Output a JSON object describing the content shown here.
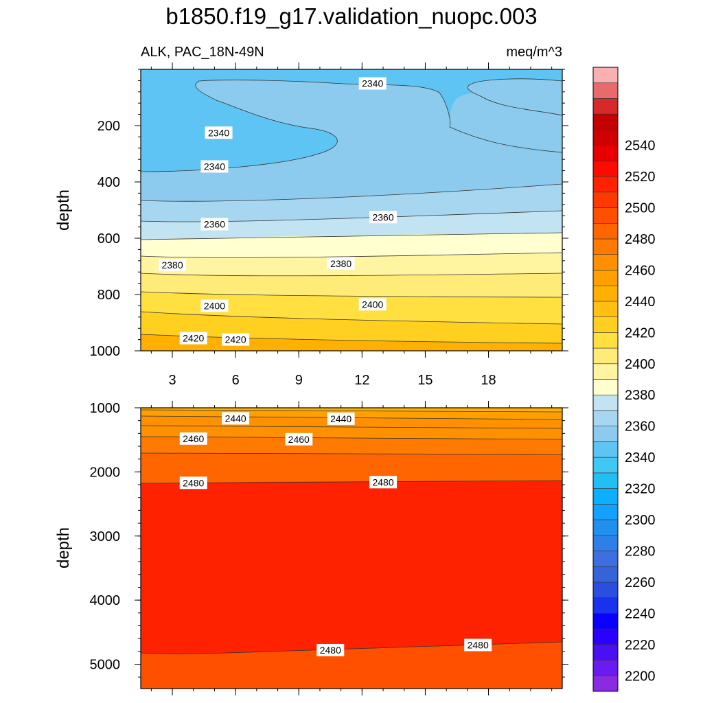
{
  "chart_data": {
    "type": "contour",
    "title": "b1850.f19_g17.validation_nuopc.003",
    "variable_label": "ALK, PAC_18N-49N",
    "units_label": "meq/m^3",
    "ylabel": "depth",
    "x_ticks": [
      "3",
      "6",
      "9",
      "12",
      "15",
      "18"
    ],
    "xlim": [
      1.5,
      21.5
    ],
    "panels": [
      {
        "name": "upper",
        "ylim": [
          0,
          1000
        ],
        "y_ticks": [
          "200",
          "400",
          "600",
          "800",
          "1000"
        ],
        "y_tick_values": [
          200,
          400,
          600,
          800,
          1000
        ],
        "contour_labels": [
          {
            "text": "2340",
            "x": 12.5,
            "depth": 50
          },
          {
            "text": "2340",
            "x": 5.2,
            "depth": 225
          },
          {
            "text": "2340",
            "x": 5.0,
            "depth": 345
          },
          {
            "text": "2360",
            "x": 5.0,
            "depth": 550
          },
          {
            "text": "2360",
            "x": 13.0,
            "depth": 525
          },
          {
            "text": "2380",
            "x": 3.0,
            "depth": 695
          },
          {
            "text": "2380",
            "x": 11.0,
            "depth": 690
          },
          {
            "text": "2400",
            "x": 5.0,
            "depth": 840
          },
          {
            "text": "2400",
            "x": 12.5,
            "depth": 835
          },
          {
            "text": "2420",
            "x": 4.0,
            "depth": 955
          },
          {
            "text": "2420",
            "x": 6.0,
            "depth": 960
          }
        ]
      },
      {
        "name": "lower",
        "ylim": [
          1000,
          5380
        ],
        "y_ticks": [
          "1000",
          "2000",
          "3000",
          "4000",
          "5000"
        ],
        "y_tick_values": [
          1000,
          2000,
          3000,
          4000,
          5000
        ],
        "contour_labels": [
          {
            "text": "2440",
            "x": 6.0,
            "depth": 1165
          },
          {
            "text": "2440",
            "x": 11.0,
            "depth": 1170
          },
          {
            "text": "2460",
            "x": 4.0,
            "depth": 1480
          },
          {
            "text": "2460",
            "x": 9.0,
            "depth": 1490
          },
          {
            "text": "2480",
            "x": 4.0,
            "depth": 2170
          },
          {
            "text": "2480",
            "x": 13.0,
            "depth": 2160
          },
          {
            "text": "2480",
            "x": 10.5,
            "depth": 4780
          },
          {
            "text": "2480",
            "x": 17.5,
            "depth": 4700
          }
        ]
      }
    ],
    "colorbar": {
      "levels": [
        2200,
        2220,
        2240,
        2260,
        2280,
        2300,
        2320,
        2340,
        2360,
        2380,
        2400,
        2420,
        2440,
        2460,
        2480,
        2500,
        2520,
        2540
      ],
      "labels": [
        "2200",
        "2220",
        "2240",
        "2260",
        "2280",
        "2300",
        "2320",
        "2340",
        "2360",
        "2380",
        "2400",
        "2420",
        "2440",
        "2460",
        "2480",
        "2500",
        "2520",
        "2540"
      ],
      "colors": [
        "#8a2be2",
        "#6a1cf0",
        "#4a0ff2",
        "#2a00ff",
        "#0a00ff",
        "#1a32f0",
        "#2a4fe0",
        "#3564d8",
        "#3f6ee0",
        "#2f7fe8",
        "#1f90f0",
        "#14a0ff",
        "#0ab0ff",
        "#20c0f5",
        "#40c8f5",
        "#5ec4f3",
        "#8dcbee",
        "#a6d6f0",
        "#c2e4f2",
        "#ffffd0",
        "#fff5a0",
        "#ffeb78",
        "#ffe040",
        "#ffd020",
        "#ffc010",
        "#ffb000",
        "#ffa000",
        "#ff9000",
        "#ff7a00",
        "#ff6600",
        "#ff5000",
        "#ff3a00",
        "#ff2200",
        "#ff0a00",
        "#e80000",
        "#d00000",
        "#c40000",
        "#d62a2a",
        "#e86a6a",
        "#f8b0b0"
      ]
    }
  }
}
